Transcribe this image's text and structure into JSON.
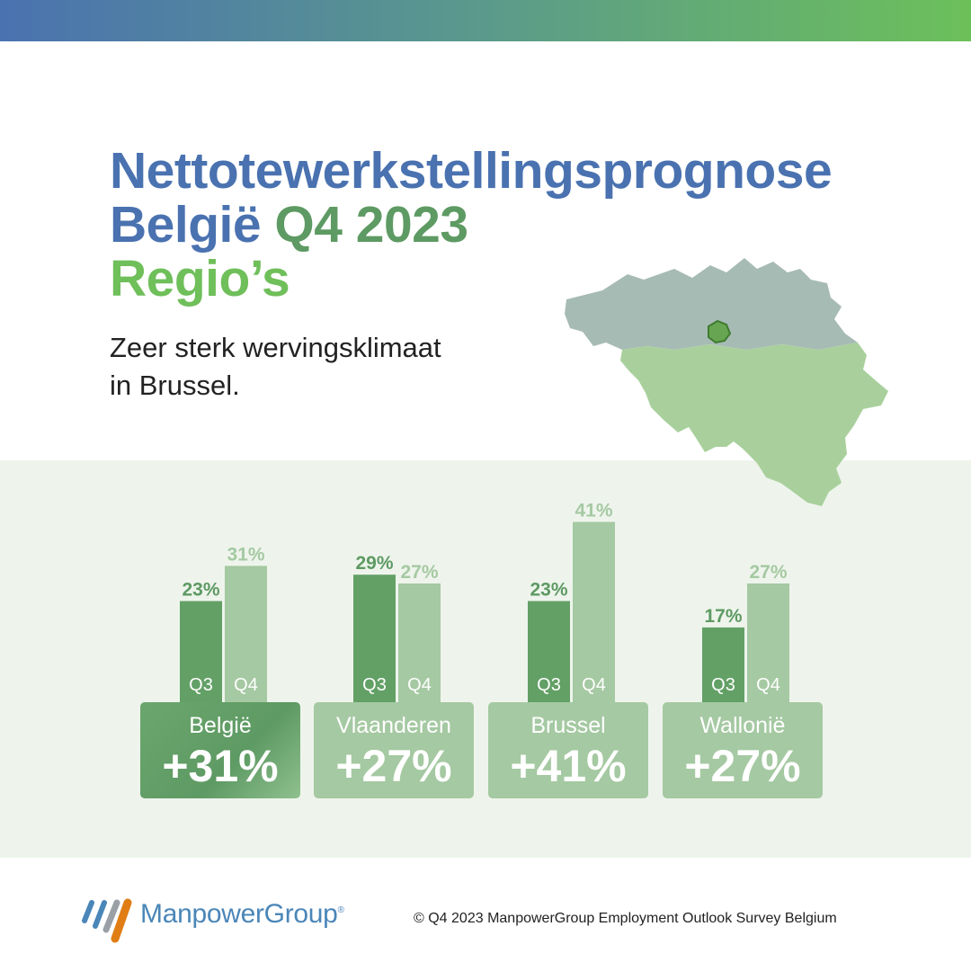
{
  "title": {
    "line1": "Nettotewerkstellingsprognose",
    "line2a": "België",
    "line2b": "Q4 2023",
    "line3": "Regio’s"
  },
  "subtitle": {
    "line1": "Zeer sterk wervingsklimaat",
    "line2": "in Brussel."
  },
  "colors": {
    "blue": "#4a72b0",
    "dark_green": "#5e9a63",
    "light_green": "#6fbf5a",
    "q3_bar": "#63a066",
    "q4_bar": "#a5c9a2",
    "panel_bg": "#eef4ec"
  },
  "map": {
    "regions": [
      "Vlaanderen",
      "Brussel",
      "Wallonië"
    ],
    "highlight": "Brussel"
  },
  "chart_data": {
    "type": "bar",
    "categories": [
      "België",
      "Vlaanderen",
      "Brussel",
      "Wallonië"
    ],
    "series": [
      {
        "name": "Q3",
        "values": [
          23,
          29,
          23,
          17
        ]
      },
      {
        "name": "Q4",
        "values": [
          31,
          27,
          41,
          27
        ]
      }
    ],
    "value_labels": {
      "Q3": [
        "23%",
        "29%",
        "23%",
        "17%"
      ],
      "Q4": [
        "31%",
        "27%",
        "41%",
        "27%"
      ]
    },
    "summary": [
      "+31%",
      "+27%",
      "+41%",
      "+27%"
    ],
    "unit": "%",
    "ylim": [
      0,
      45
    ],
    "grid": false,
    "legend": "none"
  },
  "footer": {
    "logo_text": "ManpowerGroup",
    "logo_mark": "®",
    "copyright": "© Q4 2023 ManpowerGroup Employment Outlook Survey Belgium"
  }
}
